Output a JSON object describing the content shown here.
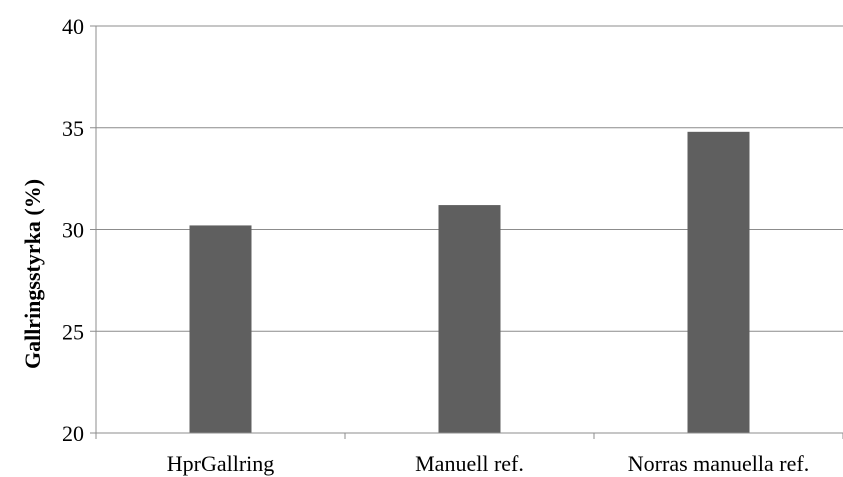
{
  "chart_data": {
    "type": "bar",
    "title": "",
    "xlabel": "",
    "ylabel": "Gallringsstyrka (%)",
    "categories": [
      "HprGallring",
      "Manuell ref.",
      "Norras manuella ref."
    ],
    "values": [
      30.2,
      31.2,
      34.8
    ],
    "ylim": [
      20,
      40
    ],
    "yticks": [
      20,
      25,
      30,
      35,
      40
    ],
    "grid": true,
    "legend": "none",
    "colors": {
      "bar": "#5f5f5f",
      "grid": "#8c8c8c",
      "text": "#000000"
    }
  }
}
